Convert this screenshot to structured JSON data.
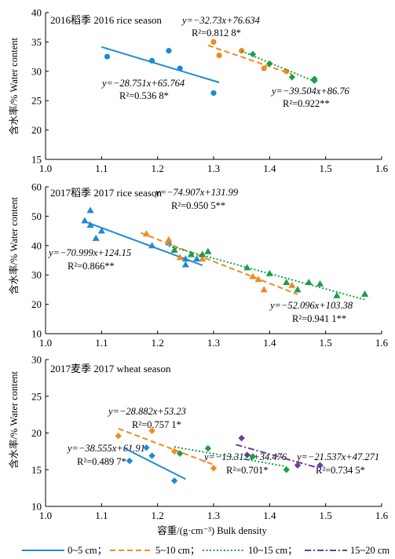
{
  "chart_data": [
    {
      "type": "scatter",
      "title": "2016稻季 2016 rice season",
      "ylabel": "含水率/%  Water content",
      "xlim": [
        1.0,
        1.6
      ],
      "ylim": [
        15,
        40
      ],
      "xticks": [
        "1.0",
        "1.1",
        "1.2",
        "1.3",
        "1.4",
        "1.5",
        "1.6"
      ],
      "yticks": [
        "15",
        "20",
        "25",
        "30",
        "35",
        "40"
      ],
      "series": [
        {
          "layer": "0-5cm",
          "color": "#1f8ad3",
          "marker": "circle",
          "points": [
            [
              1.11,
              32.5
            ],
            [
              1.19,
              31.8
            ],
            [
              1.22,
              33.5
            ],
            [
              1.24,
              30.5
            ],
            [
              1.3,
              26.3
            ]
          ],
          "fit": {
            "x": [
              1.1,
              1.31
            ],
            "equation": "y=−28.751x+65.764",
            "r2": "R²=0.536 8*"
          }
        },
        {
          "layer": "5-10cm",
          "color": "#f08a24",
          "marker": "circle",
          "points": [
            [
              1.3,
              35.0
            ],
            [
              1.31,
              32.7
            ],
            [
              1.35,
              33.5
            ],
            [
              1.39,
              30.5
            ],
            [
              1.43,
              30.0
            ]
          ],
          "fit": {
            "x": [
              1.29,
              1.44
            ],
            "equation": "y=−32.73x+76.634",
            "r2": "R²=0.812 8*"
          }
        },
        {
          "layer": "10-15cm",
          "color": "#1a9e4a",
          "marker": "diamond",
          "points": [
            [
              1.37,
              32.9
            ],
            [
              1.4,
              31.3
            ],
            [
              1.44,
              29.0
            ],
            [
              1.48,
              28.7
            ],
            [
              1.48,
              28.4
            ]
          ],
          "fit": {
            "x": [
              1.35,
              1.48
            ],
            "equation": "y=−39.504x+86.76",
            "r2": "R²=0.922**"
          }
        }
      ]
    },
    {
      "type": "scatter",
      "title": "2017稻季 2017 rice season",
      "ylabel": "含水率/%  Water content",
      "xlim": [
        1.0,
        1.6
      ],
      "ylim": [
        10,
        60
      ],
      "xticks": [
        "1.0",
        "1.1",
        "1.2",
        "1.3",
        "1.4",
        "1.5",
        "1.6"
      ],
      "yticks": [
        "10",
        "20",
        "30",
        "40",
        "50",
        "60"
      ],
      "series": [
        {
          "layer": "0-5cm",
          "color": "#1f8ad3",
          "marker": "triangle",
          "points": [
            [
              1.07,
              48.5
            ],
            [
              1.08,
              52.0
            ],
            [
              1.08,
              47.0
            ],
            [
              1.09,
              42.5
            ],
            [
              1.1,
              45.0
            ],
            [
              1.19,
              40.0
            ],
            [
              1.22,
              41.0
            ],
            [
              1.25,
              33.5
            ],
            [
              1.25,
              35.5
            ],
            [
              1.27,
              35.5
            ]
          ],
          "fit": {
            "x": [
              1.07,
              1.28
            ],
            "equation": "y=−70.999x+124.15",
            "r2": "R²=0.866**"
          }
        },
        {
          "layer": "5-10cm",
          "color": "#f08a24",
          "marker": "triangle",
          "points": [
            [
              1.18,
              44.0
            ],
            [
              1.22,
              42.0
            ],
            [
              1.24,
              36.0
            ],
            [
              1.28,
              35.5
            ],
            [
              1.37,
              29.5
            ],
            [
              1.38,
              28.5
            ],
            [
              1.39,
              25.0
            ],
            [
              1.44,
              26.5
            ]
          ],
          "fit": {
            "x": [
              1.17,
              1.45
            ],
            "equation": "y=−74.907x+131.99",
            "r2": "R²=0.950 5**"
          }
        },
        {
          "layer": "10-15cm",
          "color": "#1a9e4a",
          "marker": "triangle",
          "points": [
            [
              1.23,
              38.5
            ],
            [
              1.26,
              37.0
            ],
            [
              1.28,
              37.0
            ],
            [
              1.29,
              38.0
            ],
            [
              1.36,
              32.5
            ],
            [
              1.4,
              30.5
            ],
            [
              1.43,
              27.5
            ],
            [
              1.45,
              25.0
            ],
            [
              1.47,
              27.5
            ],
            [
              1.49,
              27.0
            ],
            [
              1.52,
              23.0
            ],
            [
              1.57,
              23.5
            ]
          ],
          "fit": {
            "x": [
              1.22,
              1.57
            ],
            "equation": "y=−52.096x+103.38",
            "r2": "R²=0.941 1**"
          }
        }
      ]
    },
    {
      "type": "scatter",
      "title": "2017麦季 2017 wheat season",
      "ylabel": "含水率/%  Water content",
      "xlabel": "容重/(g·cm⁻³)  Bulk density",
      "xlim": [
        1.0,
        1.6
      ],
      "ylim": [
        10,
        30
      ],
      "xticks": [
        "1.0",
        "1.1",
        "1.2",
        "1.3",
        "1.4",
        "1.5",
        "1.6"
      ],
      "yticks": [
        "10",
        "15",
        "20",
        "25",
        "30"
      ],
      "series": [
        {
          "layer": "0-5cm",
          "color": "#1f8ad3",
          "marker": "diamond",
          "points": [
            [
              1.15,
              16.2
            ],
            [
              1.18,
              18.0
            ],
            [
              1.19,
              16.9
            ],
            [
              1.23,
              13.5
            ]
          ],
          "fit": {
            "x": [
              1.14,
              1.25
            ],
            "equation": "y=−38.555x+61.91",
            "r2": "R²=0.489 7*"
          }
        },
        {
          "layer": "5-10cm",
          "color": "#f08a24",
          "marker": "diamond",
          "points": [
            [
              1.13,
              19.6
            ],
            [
              1.19,
              20.3
            ],
            [
              1.23,
              17.5
            ],
            [
              1.3,
              15.2
            ]
          ],
          "fit": {
            "x": [
              1.13,
              1.3
            ],
            "equation": "y=−28.882x+53.23",
            "r2": "R²=0.757 1*"
          }
        },
        {
          "layer": "10-15cm",
          "color": "#1a9e4a",
          "marker": "diamond",
          "points": [
            [
              1.24,
              17.2
            ],
            [
              1.29,
              17.9
            ],
            [
              1.37,
              16.8
            ],
            [
              1.43,
              15.0
            ]
          ],
          "fit": {
            "x": [
              1.23,
              1.43
            ],
            "equation": "y=−13.312x+34.476",
            "r2": "R²=0.701*"
          }
        },
        {
          "layer": "15-20cm",
          "color": "#6a3d9a",
          "marker": "diamond",
          "points": [
            [
              1.35,
              19.3
            ],
            [
              1.36,
              17.0
            ],
            [
              1.45,
              15.6
            ],
            [
              1.49,
              15.6
            ]
          ],
          "fit": {
            "x": [
              1.34,
              1.49
            ],
            "equation": "y=−21.537x+47.271",
            "r2": "R²=0.734 5*"
          }
        }
      ]
    }
  ],
  "legend": {
    "items": [
      {
        "label": "0~5 cm；",
        "color": "#1f8ad3",
        "dash": "solid"
      },
      {
        "label": "5~10 cm；",
        "color": "#f08a24",
        "dash": "dashed"
      },
      {
        "label": "10~15 cm；",
        "color": "#1a9e4a",
        "dash": "dotted"
      },
      {
        "label": "15~20 cm",
        "color": "#6a3d9a",
        "dash": "dashdot"
      }
    ]
  }
}
